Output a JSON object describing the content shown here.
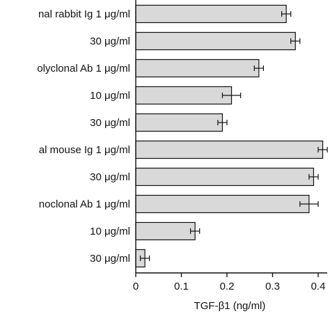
{
  "chart_data": {
    "type": "bar",
    "orientation": "horizontal",
    "title": "",
    "xlabel": "TGF-β1 (ng/ml)",
    "ylabel": "",
    "xlim": [
      0,
      0.43
    ],
    "xticks": [
      0,
      0.1,
      0.2,
      0.3,
      0.4
    ],
    "xtick_labels": [
      "0",
      "0.1",
      "0.2",
      "0.3",
      "0.4"
    ],
    "grid": false,
    "legend": "none",
    "bar_color": "#d9d9d9",
    "edge_color": "#111111",
    "categories": [
      "nal rabbit Ig 1 μg/ml",
      "30 μg/ml",
      "olyclonal Ab 1 μg/ml",
      "10 μg/ml",
      "30 μg/ml",
      "al mouse Ig 1 μg/ml",
      "30 μg/ml",
      "noclonal Ab 1 μg/ml",
      "10 μg/ml",
      "30 μg/ml"
    ],
    "values": [
      0.33,
      0.35,
      0.27,
      0.21,
      0.19,
      0.41,
      0.39,
      0.38,
      0.13,
      0.02
    ],
    "errors": [
      0.01,
      0.01,
      0.01,
      0.02,
      0.01,
      0.01,
      0.01,
      0.02,
      0.01,
      0.01
    ]
  }
}
